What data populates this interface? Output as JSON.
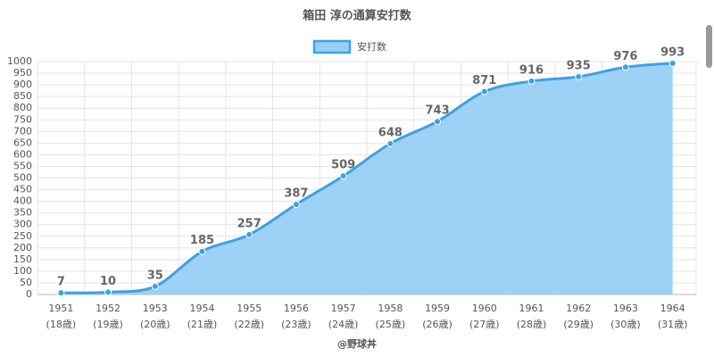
{
  "chart_data": {
    "type": "area",
    "title": "箱田 淳の通算安打数",
    "categories": [
      "1951",
      "1952",
      "1953",
      "1954",
      "1955",
      "1956",
      "1957",
      "1958",
      "1959",
      "1960",
      "1961",
      "1962",
      "1963",
      "1964"
    ],
    "category_sublabels": [
      "(18歳)",
      "(19歳)",
      "(20歳)",
      "(21歳)",
      "(22歳)",
      "(23歳)",
      "(24歳)",
      "(25歳)",
      "(26歳)",
      "(27歳)",
      "(28歳)",
      "(29歳)",
      "(30歳)",
      "(31歳)"
    ],
    "series": [
      {
        "name": "安打数",
        "color": "#3ba1e6",
        "fill": "#99cff5",
        "values": [
          7,
          10,
          35,
          185,
          257,
          387,
          509,
          648,
          743,
          871,
          916,
          935,
          976,
          993
        ]
      }
    ],
    "ylim": [
      0,
      1000
    ],
    "yticks": [
      0,
      50,
      100,
      150,
      200,
      250,
      300,
      350,
      400,
      450,
      500,
      550,
      600,
      650,
      700,
      750,
      800,
      850,
      900,
      950,
      1000
    ],
    "grid": true,
    "legend": "top",
    "footer": "@野球丼"
  }
}
